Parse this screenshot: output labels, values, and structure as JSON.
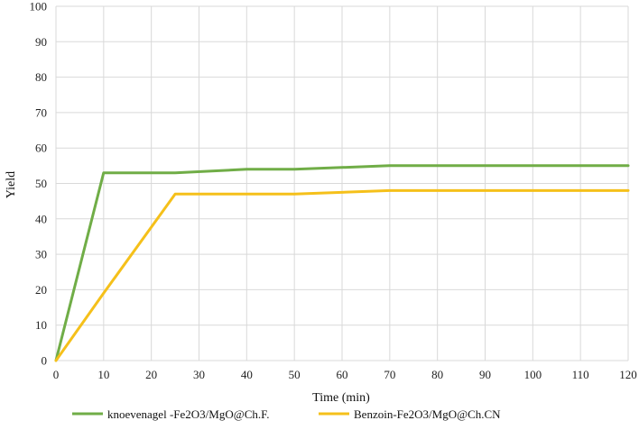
{
  "chart_data": {
    "type": "line",
    "title": "",
    "xlabel": "Time (min)",
    "ylabel": "Yield",
    "xlim": [
      0,
      120
    ],
    "ylim": [
      0,
      100
    ],
    "xticks": [
      0,
      10,
      20,
      30,
      40,
      50,
      60,
      70,
      80,
      90,
      100,
      110,
      120
    ],
    "yticks": [
      0,
      10,
      20,
      30,
      40,
      50,
      60,
      70,
      80,
      90,
      100
    ],
    "grid": true,
    "legend_position": "bottom",
    "series": [
      {
        "name": "knoevenagel -Fe2O3/MgO@Ch.F.",
        "color": "#70ad47",
        "x": [
          0,
          10,
          25,
          40,
          50,
          70,
          120
        ],
        "y": [
          0,
          53,
          53,
          54,
          54,
          55,
          55
        ]
      },
      {
        "name": "Benzoin-Fe2O3/MgO@Ch.CN",
        "color": "#f5c01a",
        "x": [
          0,
          10,
          25,
          40,
          50,
          70,
          120
        ],
        "y": [
          0,
          19,
          47,
          47,
          47,
          48,
          48
        ]
      }
    ]
  }
}
